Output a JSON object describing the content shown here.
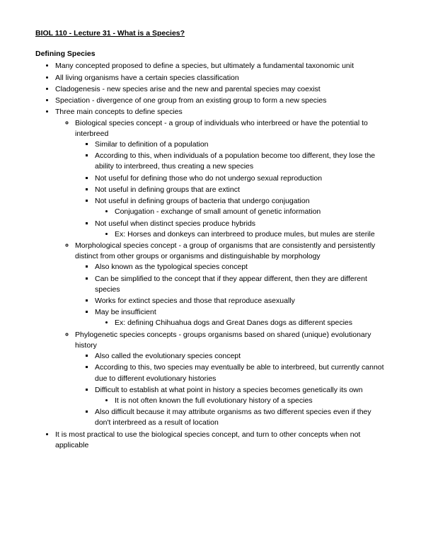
{
  "title": "BIOL 110 - Lecture 31 - What is a Species?",
  "section_head": "Defining Species",
  "b1": "Many concepted proposed to define a species, but ultimately a fundamental taxonomic unit",
  "b2": "All living organisms have a certain species classification",
  "b3": "Cladogenesis - new species arise and the new and parental species may coexist",
  "b4": "Speciation - divergence of one group from an existing group to form a new species",
  "b5": "Three main concepts to define species",
  "b5a": "Biological species concept - a group of individuals who interbreed or have the potential to interbreed",
  "b5a1": "Similar to definition of a population",
  "b5a2": "According to this, when individuals of a population become too different, they lose the ability to interbreed, thus creating a new species",
  "b5a3": "Not useful for defining those who do not undergo sexual reproduction",
  "b5a4": "Not useful in defining groups that are extinct",
  "b5a5": "Not useful in defining groups of bacteria that undergo conjugation",
  "b5a5i": "Conjugation - exchange of small amount of genetic information",
  "b5a6": "Not useful when distinct species produce hybrids",
  "b5a6i": "Ex: Horses and donkeys can interbreed to produce mules, but mules are sterile",
  "b5b": "Morphological species concept - a group of organisms that are consistently and persistently distinct from other groups or organisms and distinguishable by morphology",
  "b5b1": "Also known as the typological species concept",
  "b5b2": "Can be simplified to the concept that if they appear different, then they are different species",
  "b5b3": "Works for extinct species and those that reproduce asexually",
  "b5b4": "May be insufficient",
  "b5b4i": "Ex: defining Chihuahua dogs and Great Danes dogs as different species",
  "b5c": "Phylogenetic species concepts - groups organisms based on shared (unique) evolutionary history",
  "b5c1": "Also called the evolutionary species concept",
  "b5c2": "According to this, two species may eventually be able to interbreed, but currently cannot due to different evolutionary histories",
  "b5c3": "Difficult to establish at what point in history a species becomes genetically its own",
  "b5c3i": "It is not often known the full evolutionary history of a species",
  "b5c4": "Also difficult because it may attribute organisms as two different species even if  they don't interbreed as a result of location",
  "b6": "It is most practical to use the biological species concept, and turn to other concepts when not applicable"
}
